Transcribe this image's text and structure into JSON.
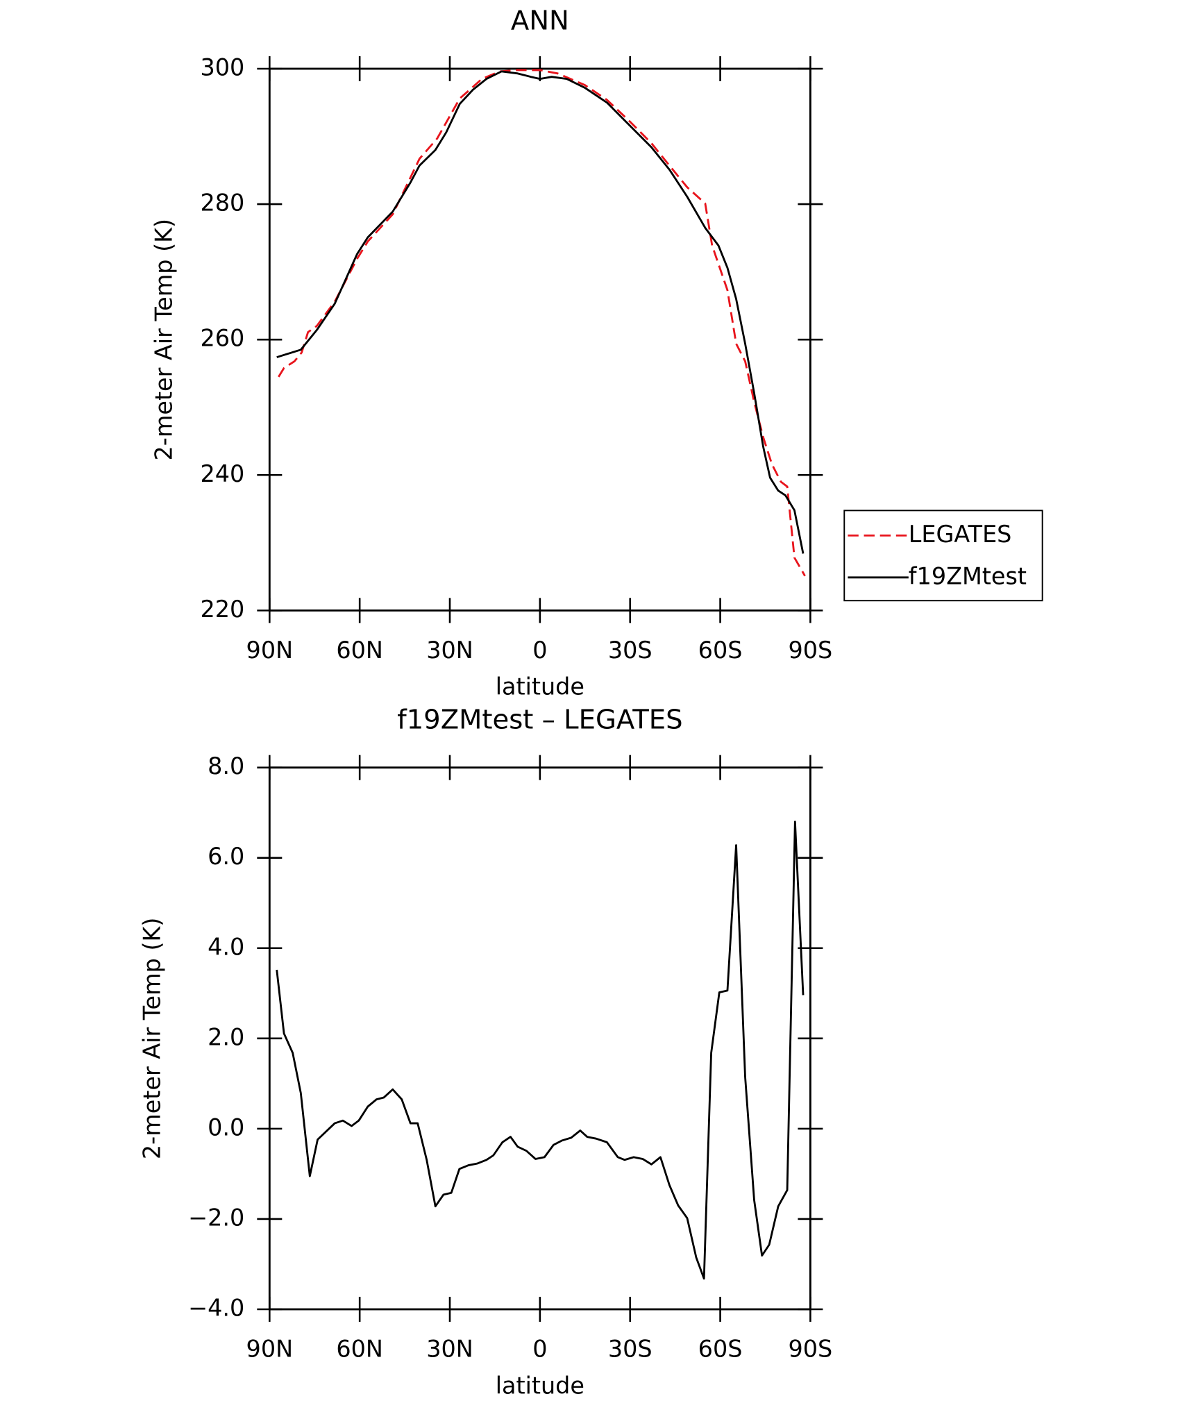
{
  "chart_data": [
    {
      "type": "line",
      "title": "ANN",
      "xlabel": "latitude",
      "ylabel": "2-meter Air Temp (K)",
      "xlim": [
        90,
        -90
      ],
      "xticks": [
        {
          "value": 90,
          "label": "90N"
        },
        {
          "value": 60,
          "label": "60N"
        },
        {
          "value": 30,
          "label": "30N"
        },
        0,
        {
          "value": -30,
          "label": "30S"
        },
        {
          "value": -60,
          "label": "60S"
        },
        {
          "value": -90,
          "label": "90S"
        }
      ],
      "ylim": [
        220,
        300
      ],
      "yticks": [
        220,
        240,
        260,
        280,
        300
      ],
      "legend": "right",
      "series": [
        {
          "name": "LEGATES",
          "color": "#e8141c",
          "dashed": true,
          "x": [
            87,
            85.2,
            81.7,
            79.3,
            77.2,
            74.3,
            68.3,
            60.9,
            57.3,
            49,
            40.1,
            34.2,
            26.7,
            19.3,
            13.4,
            7.4,
            0,
            -5.9,
            -14.9,
            -22.3,
            -29.7,
            -37.1,
            -43.1,
            -49,
            -55,
            -57.3,
            -62.4,
            -65.3,
            -68.3,
            -71.3,
            -74.3,
            -77.2,
            -80.2,
            -82.3,
            -84.7,
            -88.2
          ],
          "values": [
            254.5,
            255.8,
            256.8,
            258.1,
            261.1,
            262.0,
            265.6,
            271.9,
            274.5,
            278.5,
            286.7,
            289.7,
            295.6,
            298.5,
            299.6,
            299.8,
            299.8,
            299.3,
            297.6,
            295.4,
            292.3,
            289.0,
            285.7,
            282.5,
            280.1,
            273.9,
            267.3,
            259.4,
            256.8,
            250.8,
            245.6,
            241.6,
            239.0,
            238.3,
            227.8,
            225.1
          ]
        },
        {
          "name": "f19ZMtest",
          "color": "#000000",
          "dashed": false,
          "x": [
            87.6,
            79.6,
            74.3,
            68.3,
            60.9,
            57.3,
            49,
            43.1,
            40.1,
            34.8,
            31.2,
            26.7,
            22.3,
            17.8,
            12.8,
            7.4,
            3,
            0,
            -3.9,
            -8.9,
            -14.9,
            -22.3,
            -29.7,
            -37.1,
            -43.1,
            -49,
            -55,
            -59.4,
            -62.4,
            -65.3,
            -68.3,
            -71.3,
            -74.3,
            -76.6,
            -79.3,
            -81.7,
            -84.7,
            -87.6
          ],
          "values": [
            257.4,
            258.5,
            261.4,
            265.3,
            272.6,
            275.1,
            278.9,
            283.2,
            285.7,
            288.0,
            290.6,
            294.8,
            296.9,
            298.5,
            299.6,
            299.3,
            298.8,
            298.5,
            298.8,
            298.5,
            297.2,
            295.0,
            291.7,
            288.4,
            285.1,
            281.1,
            276.5,
            273.9,
            270.6,
            266.0,
            259.4,
            252.1,
            244.2,
            239.6,
            237.7,
            237.0,
            234.8,
            228.4
          ]
        }
      ]
    },
    {
      "type": "line",
      "title": "f19ZMtest – LEGATES",
      "xlabel": "latitude",
      "ylabel": "2-meter Air Temp (K)",
      "xlim": [
        90,
        -90
      ],
      "xticks": [
        {
          "value": 90,
          "label": "90N"
        },
        {
          "value": 60,
          "label": "60N"
        },
        {
          "value": 30,
          "label": "30N"
        },
        0,
        {
          "value": -30,
          "label": "30S"
        },
        {
          "value": -60,
          "label": "60S"
        },
        {
          "value": -90,
          "label": "90S"
        }
      ],
      "ylim": [
        -4,
        8
      ],
      "yticks": [
        {
          "value": -4,
          "label": "−4.0"
        },
        {
          "value": -2,
          "label": "−2.0"
        },
        {
          "value": 0,
          "label": "0.0"
        },
        {
          "value": 2,
          "label": "2.0"
        },
        {
          "value": 4,
          "label": "4.0"
        },
        {
          "value": 6,
          "label": "6.0"
        },
        {
          "value": 8,
          "label": "8.0"
        }
      ],
      "series": [
        {
          "color": "#000000",
          "dashed": false,
          "x": [
            87.6,
            85.2,
            82.3,
            79.6,
            76.6,
            74.0,
            68.3,
            65.6,
            62.7,
            60.3,
            57.3,
            54.4,
            52.0,
            49.0,
            46.0,
            43.1,
            40.7,
            37.7,
            34.8,
            32.1,
            29.5,
            26.8,
            23.8,
            20.8,
            17.8,
            15.5,
            12.5,
            9.8,
            7.4,
            4.5,
            1.5,
            -1.5,
            -4.5,
            -7.4,
            -10.4,
            -13.4,
            -15.7,
            -18.7,
            -22.3,
            -25.9,
            -28.2,
            -31.2,
            -34.2,
            -37.1,
            -40.1,
            -43.1,
            -46.0,
            -49.0,
            -52.0,
            -54.6,
            -57.0,
            -59.7,
            -62.4,
            -65.3,
            -68.3,
            -71.3,
            -73.9,
            -76.3,
            -79.3,
            -82.3,
            -84.9,
            -87.6
          ],
          "values": [
            3.52,
            2.11,
            1.68,
            0.79,
            -1.05,
            -0.24,
            0.12,
            0.18,
            0.06,
            0.18,
            0.49,
            0.65,
            0.69,
            0.87,
            0.65,
            0.12,
            0.12,
            -0.69,
            -1.72,
            -1.46,
            -1.42,
            -0.89,
            -0.81,
            -0.77,
            -0.69,
            -0.59,
            -0.3,
            -0.18,
            -0.4,
            -0.49,
            -0.67,
            -0.63,
            -0.36,
            -0.26,
            -0.2,
            -0.04,
            -0.18,
            -0.22,
            -0.3,
            -0.63,
            -0.69,
            -0.63,
            -0.67,
            -0.79,
            -0.63,
            -1.25,
            -1.7,
            -1.98,
            -2.85,
            -3.32,
            1.68,
            3.02,
            3.06,
            6.28,
            1.15,
            -1.58,
            -2.81,
            -2.57,
            -1.72,
            -1.36,
            6.8,
            2.96
          ]
        }
      ]
    }
  ]
}
